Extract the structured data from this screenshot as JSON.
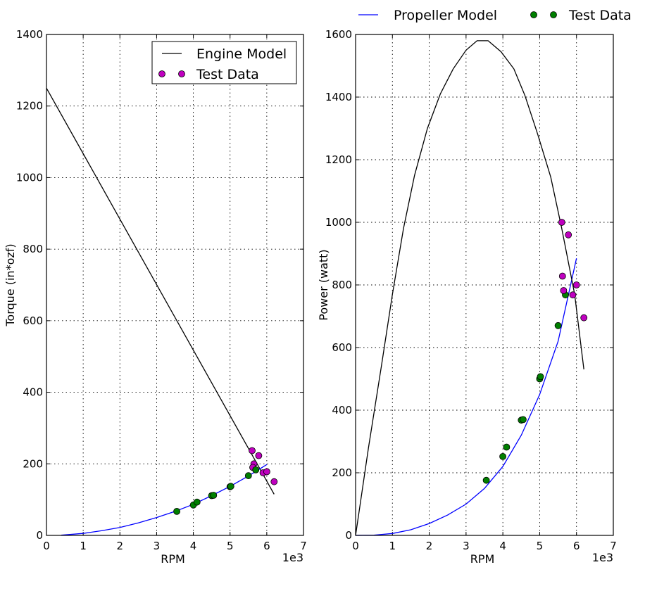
{
  "chart_data": [
    {
      "type": "line",
      "xlabel": "RPM",
      "ylabel": "Torque (in*ozf)",
      "x_multiplier_label": "1e3",
      "xlim": [
        0,
        7
      ],
      "ylim": [
        0,
        1400
      ],
      "xticks": [
        "0",
        "1",
        "2",
        "3",
        "4",
        "5",
        "6",
        "7"
      ],
      "yticks": [
        "0",
        "200",
        "400",
        "600",
        "800",
        "1000",
        "1200",
        "1400"
      ],
      "grid": true,
      "legend_position": "top-right",
      "series": [
        {
          "name": "Engine Model",
          "kind": "line",
          "color": "#000000",
          "x": [
            0,
            6.2
          ],
          "y": [
            1250,
            115
          ]
        },
        {
          "name": "Test Data",
          "kind": "points",
          "color": "#bf00bf",
          "x": [
            5.6,
            5.65,
            5.62,
            5.78,
            5.9,
            6.0,
            6.2
          ],
          "y": [
            237,
            200,
            190,
            223,
            175,
            178,
            150
          ]
        },
        {
          "name": "",
          "kind": "line",
          "color": "#0000ff",
          "x": [
            0.4,
            1.0,
            1.5,
            2.0,
            2.5,
            3.0,
            3.5,
            4.0,
            4.5,
            5.0,
            5.5,
            6.0
          ],
          "y": [
            0.5,
            5.5,
            13,
            22,
            35,
            50,
            67,
            87,
            111,
            137,
            166,
            198
          ]
        },
        {
          "name": "",
          "kind": "points",
          "color": "#007f00",
          "x": [
            3.55,
            4.0,
            4.1,
            4.5,
            4.55,
            5.0,
            5.02,
            5.5,
            5.7
          ],
          "y": [
            67,
            85,
            93,
            111,
            112,
            136,
            137,
            167,
            183
          ]
        }
      ]
    },
    {
      "type": "line",
      "xlabel": "RPM",
      "ylabel": "Power (watt)",
      "x_multiplier_label": "1e3",
      "xlim": [
        0,
        7
      ],
      "ylim": [
        0,
        1600
      ],
      "xticks": [
        "0",
        "1",
        "2",
        "3",
        "4",
        "5",
        "6",
        "7"
      ],
      "yticks": [
        "0",
        "200",
        "400",
        "600",
        "800",
        "1000",
        "1200",
        "1400",
        "1600"
      ],
      "grid": true,
      "legend_position": "top (outside)",
      "series": [
        {
          "name": "Propeller Model",
          "kind": "line",
          "color": "#0000ff",
          "x": [
            0,
            0.5,
            1.0,
            1.5,
            2.0,
            2.5,
            3.0,
            3.5,
            4.0,
            4.5,
            5.0,
            5.5,
            6.0
          ],
          "y": [
            0,
            1,
            6,
            18,
            38,
            65,
            100,
            150,
            220,
            320,
            450,
            620,
            885
          ]
        },
        {
          "name": "Test Data",
          "kind": "points",
          "color": "#007f00",
          "x": [
            3.55,
            4.0,
            4.1,
            4.5,
            4.55,
            5.0,
            5.02,
            5.5,
            5.7
          ],
          "y": [
            176,
            252,
            282,
            368,
            370,
            500,
            507,
            670,
            768
          ]
        },
        {
          "name": "",
          "kind": "line",
          "color": "#000000",
          "x": [
            0,
            0.35,
            0.7,
            1.0,
            1.3,
            1.6,
            1.95,
            2.3,
            2.65,
            3.0,
            3.3,
            3.6,
            3.95,
            4.3,
            4.6,
            4.95,
            5.3,
            5.6,
            5.95,
            6.2
          ],
          "y": [
            0,
            280,
            540,
            770,
            980,
            1150,
            1300,
            1410,
            1490,
            1550,
            1580,
            1580,
            1545,
            1490,
            1405,
            1280,
            1145,
            980,
            770,
            530
          ]
        },
        {
          "name": "",
          "kind": "points",
          "color": "#bf00bf",
          "x": [
            5.6,
            5.62,
            5.65,
            5.78,
            5.9,
            6.0,
            6.2
          ],
          "y": [
            1000,
            828,
            782,
            960,
            768,
            800,
            695
          ]
        }
      ]
    }
  ]
}
